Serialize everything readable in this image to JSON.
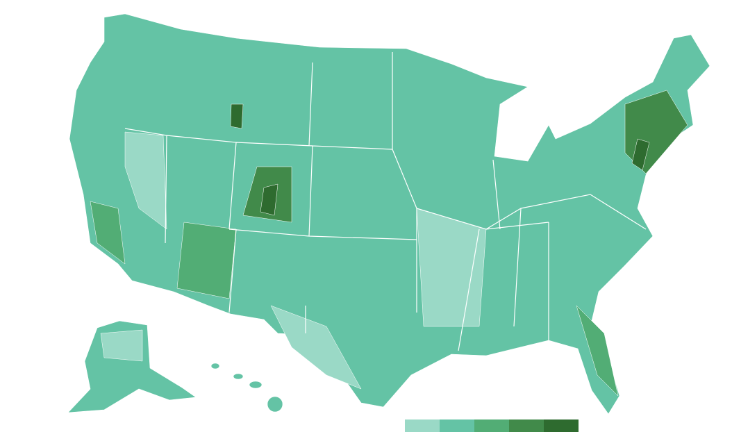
{
  "map": {
    "land_color": "#64c3a5",
    "border_color": "#ffffff"
  },
  "legend": {
    "colors": [
      "#9ad9c6",
      "#64c3a5",
      "#52ad75",
      "#418a4a",
      "#2e6b2f"
    ]
  }
}
